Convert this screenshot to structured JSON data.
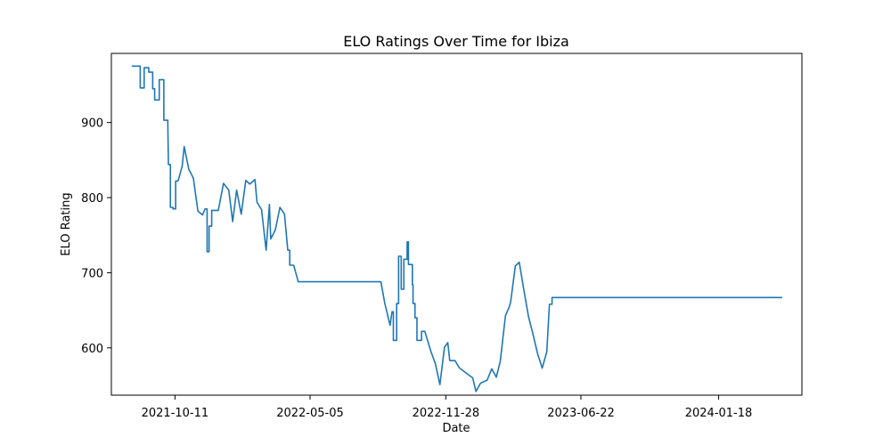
{
  "chart_data": {
    "type": "line",
    "title": "ELO Ratings Over Time for Ibiza",
    "xlabel": "Date",
    "ylabel": "ELO Rating",
    "x_ticks": [
      "2021-10-11",
      "2022-05-05",
      "2022-11-28",
      "2023-06-22",
      "2024-01-18"
    ],
    "y_ticks": [
      600,
      700,
      800,
      900
    ],
    "xlim": [
      "2021-07-06",
      "2024-05-24"
    ],
    "ylim": [
      537,
      992
    ],
    "grid": false,
    "legend": "none",
    "color": "#1f77b4",
    "series": [
      {
        "x": [
          "2021-08-06",
          "2021-08-19",
          "2021-08-19",
          "2021-08-25",
          "2021-08-25",
          "2021-09-01",
          "2021-09-01",
          "2021-09-07",
          "2021-09-07",
          "2021-09-10",
          "2021-09-10",
          "2021-09-17",
          "2021-09-17",
          "2021-09-24",
          "2021-09-24",
          "2021-09-30",
          "2021-09-30",
          "2021-10-01",
          "2021-10-01",
          "2021-10-04",
          "2021-10-04",
          "2021-10-08",
          "2021-10-08",
          "2021-10-12",
          "2021-10-12",
          "2021-10-15",
          "2021-10-15",
          "2021-10-16",
          "2021-10-16",
          "2021-10-22",
          "2021-10-22",
          "2021-10-25",
          "2021-10-25",
          "2021-11-01",
          "2021-11-01",
          "2021-11-08",
          "2021-11-08",
          "2021-11-15",
          "2021-11-15",
          "2021-11-22",
          "2021-11-22",
          "2021-11-26",
          "2021-11-26",
          "2021-11-29",
          "2021-11-29",
          "2021-12-02",
          "2021-12-02",
          "2021-12-06",
          "2021-12-06",
          "2021-12-16",
          "2021-12-16",
          "2021-12-24",
          "2021-12-24",
          "2022-01-01",
          "2022-01-01",
          "2022-01-07",
          "2022-01-07",
          "2022-01-13",
          "2022-01-13",
          "2022-01-20",
          "2022-01-20",
          "2022-01-27",
          "2022-01-27",
          "2022-02-02",
          "2022-02-02",
          "2022-02-10",
          "2022-02-10",
          "2022-02-13",
          "2022-02-13",
          "2022-02-20",
          "2022-02-20",
          "2022-02-27",
          "2022-02-27",
          "2022-03-04",
          "2022-03-04",
          "2022-03-06",
          "2022-03-06",
          "2022-03-13",
          "2022-03-13",
          "2022-03-20",
          "2022-03-20",
          "2022-03-27",
          "2022-03-27",
          "2022-04-01",
          "2022-04-01",
          "2022-04-04",
          "2022-04-04",
          "2022-04-10",
          "2022-04-10",
          "2022-04-17",
          "2022-04-17",
          "2022-04-24",
          "2022-04-24",
          "2022-05-01",
          "2022-05-01",
          "2022-05-05",
          "2022-05-05",
          "2022-05-11",
          "2022-05-11",
          "2022-05-16",
          "2022-05-16",
          "2022-05-22",
          "2022-05-22",
          "2022-05-29",
          "2022-05-29",
          "2022-08-21",
          "2022-08-21",
          "2022-08-27",
          "2022-08-27",
          "2022-09-04",
          "2022-09-04",
          "2022-09-07",
          "2022-09-07",
          "2022-09-09",
          "2022-09-09",
          "2022-09-14",
          "2022-09-14",
          "2022-09-17",
          "2022-09-17",
          "2022-09-21",
          "2022-09-21",
          "2022-09-25",
          "2022-09-25",
          "2022-09-30",
          "2022-09-30",
          "2022-10-02",
          "2022-10-02",
          "2022-10-08",
          "2022-10-08",
          "2022-10-09",
          "2022-10-09",
          "2022-10-12",
          "2022-10-12",
          "2022-10-15",
          "2022-10-15",
          "2022-10-22",
          "2022-10-22",
          "2022-10-24",
          "2022-10-24",
          "2022-10-27",
          "2022-10-27",
          "2022-11-05",
          "2022-11-05",
          "2022-11-12",
          "2022-11-12",
          "2022-11-19",
          "2022-11-19",
          "2022-11-26",
          "2022-11-26",
          "2022-12-01",
          "2022-12-01",
          "2022-12-04",
          "2022-12-04",
          "2022-12-10",
          "2022-12-10",
          "2022-12-12",
          "2022-12-12",
          "2022-12-19",
          "2022-12-19",
          "2023-01-08",
          "2023-01-08",
          "2023-01-13",
          "2023-01-13",
          "2023-01-20",
          "2023-01-20",
          "2023-01-30",
          "2023-01-30",
          "2023-02-06",
          "2023-02-06",
          "2023-02-13",
          "2023-02-13",
          "2023-02-19",
          "2023-02-19",
          "2023-02-27",
          "2023-02-27",
          "2023-03-05",
          "2023-03-05",
          "2023-03-07",
          "2023-03-07",
          "2023-03-14",
          "2023-03-14",
          "2023-03-20",
          "2023-03-20",
          "2023-03-27",
          "2023-03-27",
          "2023-04-03",
          "2023-04-03",
          "2023-04-10",
          "2023-04-10",
          "2023-04-17",
          "2023-04-17",
          "2023-04-24",
          "2023-04-24",
          "2023-05-01",
          "2023-05-01",
          "2023-05-05",
          "2023-05-05",
          "2023-05-09",
          "2023-05-09",
          "2023-05-15",
          "2023-05-15",
          "2023-05-26",
          "2023-05-26",
          "2023-05-29",
          "2023-05-29",
          "2023-06-04",
          "2023-06-04",
          "2023-06-08",
          "2023-06-08",
          "2023-06-11",
          "2024-04-24"
        ],
        "y": [
          975,
          975,
          946,
          946,
          973,
          973,
          967,
          967,
          945,
          945,
          930,
          930,
          957,
          957,
          903,
          903,
          903,
          844,
          844,
          844,
          787,
          787,
          785,
          785,
          822,
          822,
          822,
          823,
          823,
          842,
          842,
          868,
          868,
          838,
          838,
          826,
          826,
          782,
          782,
          777,
          777,
          785,
          785,
          785,
          728,
          728,
          762,
          762,
          783,
          783,
          783,
          819,
          819,
          810,
          810,
          768,
          768,
          810,
          810,
          778,
          778,
          823,
          823,
          818,
          818,
          824,
          824,
          794,
          794,
          784,
          784,
          730,
          730,
          791,
          791,
          745,
          745,
          757,
          757,
          787,
          787,
          778,
          778,
          730,
          730,
          730,
          710,
          710,
          710,
          688,
          688,
          688,
          688,
          688,
          688,
          688,
          688,
          688,
          688,
          688,
          688,
          688,
          688,
          688,
          688,
          688,
          688,
          659,
          659,
          630,
          630,
          648,
          648,
          648,
          610,
          610,
          659,
          659,
          722,
          722,
          678,
          678,
          718,
          718,
          741,
          741,
          711,
          711,
          684,
          684,
          659,
          659,
          640,
          640,
          610,
          610,
          622,
          622,
          622,
          622,
          622,
          596,
          596,
          579,
          579,
          551,
          551,
          601,
          601,
          607,
          607,
          583,
          583,
          583,
          583,
          583,
          583,
          573,
          573,
          560,
          560,
          542,
          542,
          553,
          553,
          557,
          557,
          572,
          572,
          561,
          561,
          582,
          582,
          643,
          643,
          655,
          655,
          662,
          662,
          709,
          709,
          714,
          714,
          677,
          677,
          642,
          642,
          618,
          618,
          592,
          592,
          573,
          573,
          595,
          595,
          658,
          658,
          658,
          667,
          667,
          667,
          667,
          667,
          667,
          667,
          667,
          667,
          667,
          667,
          667,
          667
        ]
      }
    ]
  }
}
